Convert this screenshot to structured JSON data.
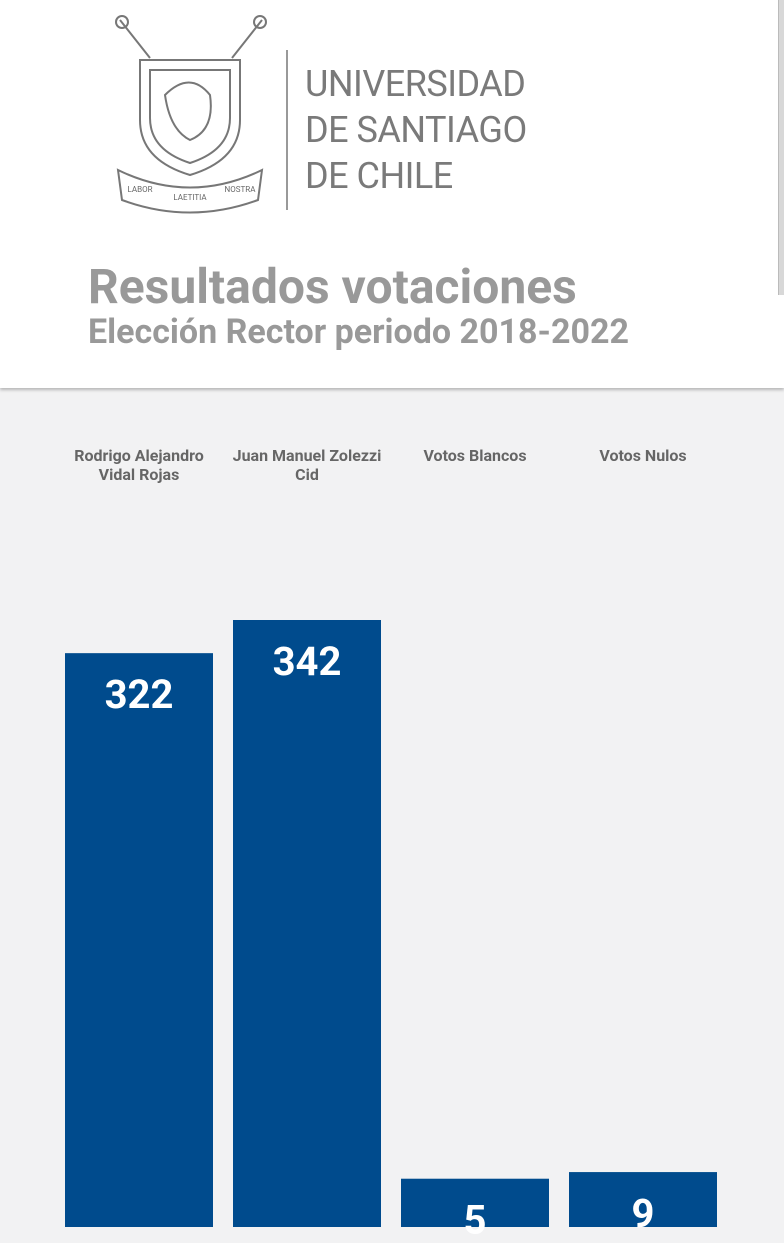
{
  "header": {
    "logo_text": [
      "UNIVERSIDAD",
      "DE SANTIAGO",
      "DE CHILE"
    ],
    "motto": [
      "LABOR",
      "LAETITIA",
      "NOSTRA"
    ]
  },
  "chart_data": {
    "type": "bar",
    "title": "Resultados votaciones",
    "subtitle": "Elección Rector periodo 2018-2022",
    "categories": [
      "Rodrigo Alejandro Vidal Rojas",
      "Juan Manuel Zolezzi Cid",
      "Votos Blancos",
      "Votos Nulos"
    ],
    "values": [
      322,
      342,
      5,
      9
    ],
    "color": "#004b8d"
  }
}
